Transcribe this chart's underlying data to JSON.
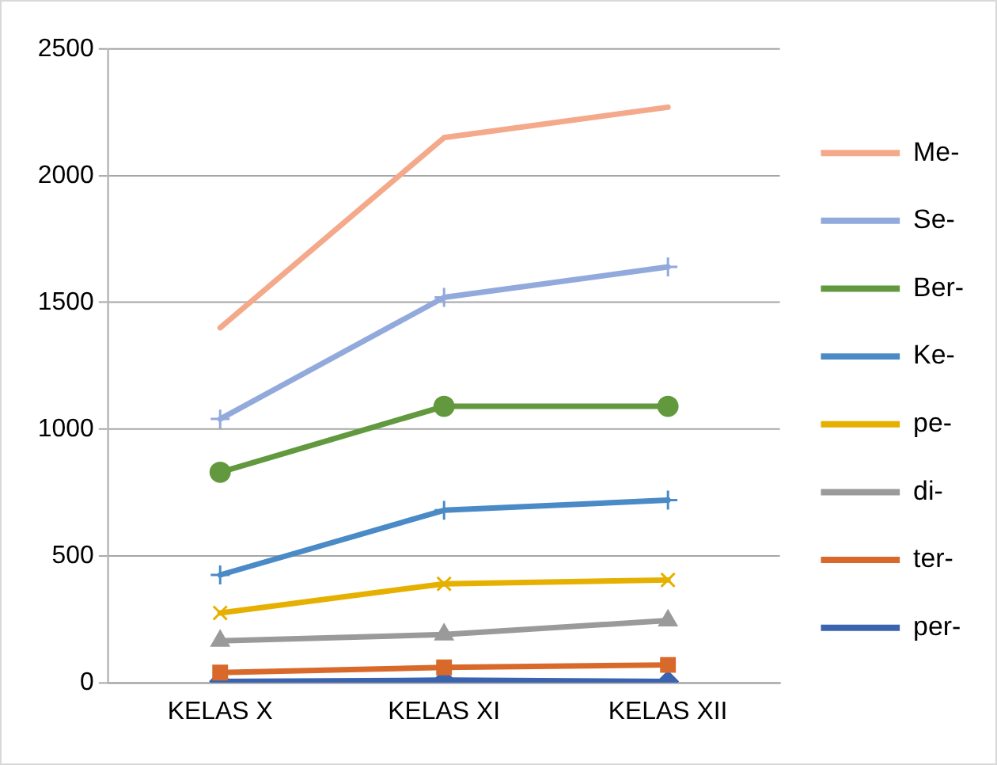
{
  "chart_data": {
    "type": "line",
    "categories": [
      "KELAS X",
      "KELAS XI",
      "KELAS XII"
    ],
    "series": [
      {
        "name": "Me-",
        "color": "#f4a98a",
        "marker": "none",
        "values": [
          1400,
          2150,
          2270
        ]
      },
      {
        "name": "Se-",
        "color": "#92a9dc",
        "marker": "cross",
        "values": [
          1040,
          1520,
          1640
        ]
      },
      {
        "name": "Ber-",
        "color": "#62993e",
        "marker": "circle",
        "values": [
          830,
          1090,
          1090
        ]
      },
      {
        "name": "Ke-",
        "color": "#4a8ac6",
        "marker": "cross",
        "values": [
          425,
          680,
          720
        ]
      },
      {
        "name": "pe-",
        "color": "#e6b000",
        "marker": "x",
        "values": [
          275,
          390,
          405
        ]
      },
      {
        "name": "di-",
        "color": "#9a9a9a",
        "marker": "triangle",
        "values": [
          165,
          190,
          245
        ]
      },
      {
        "name": "ter-",
        "color": "#d8692a",
        "marker": "square",
        "values": [
          40,
          60,
          70
        ]
      },
      {
        "name": "per-",
        "color": "#3b64b0",
        "marker": "diamond",
        "values": [
          5,
          10,
          5
        ]
      }
    ],
    "ylim": [
      0,
      2500
    ],
    "yticks": [
      0,
      500,
      1000,
      1500,
      2000,
      2500
    ],
    "grid": "y",
    "legend": "right",
    "line_style": "solid"
  }
}
